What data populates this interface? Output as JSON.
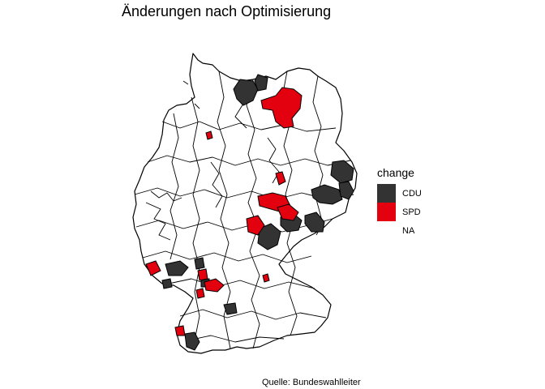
{
  "title": "Änderungen nach Optimisierung",
  "caption": "Quelle: Bundeswahlleiter",
  "legend": {
    "title": "change",
    "items": [
      {
        "label": "CDU",
        "color": "#333333"
      },
      {
        "label": "SPD",
        "color": "#e3000f"
      },
      {
        "label": "NA",
        "color": "#ffffff"
      }
    ]
  }
}
